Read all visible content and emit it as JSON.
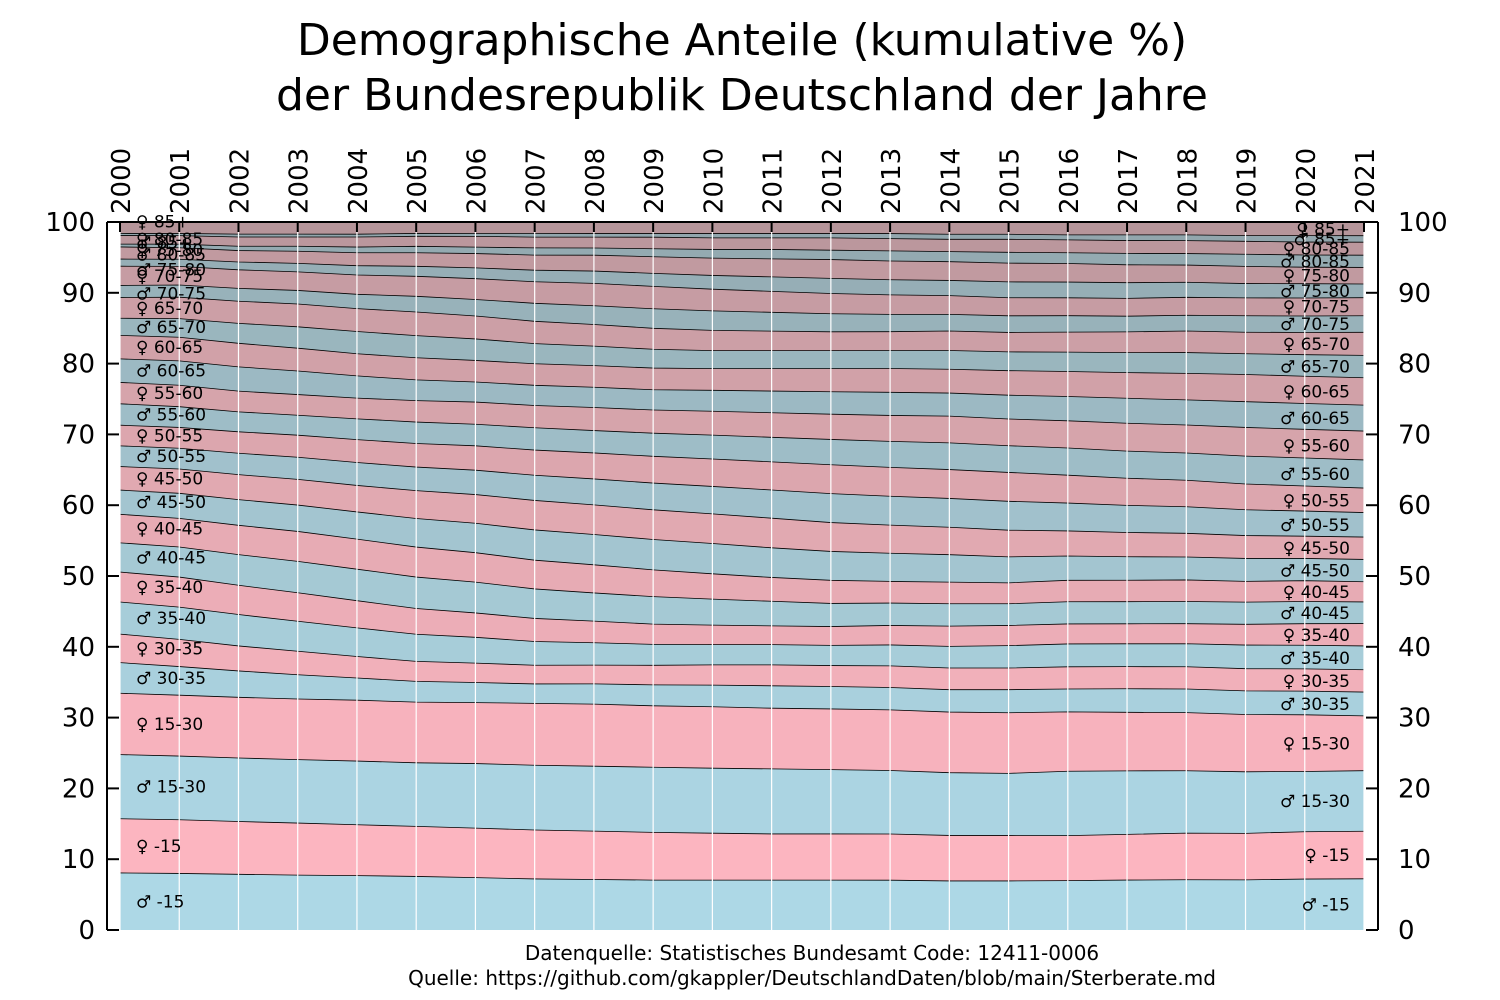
{
  "title_line1": "Demographische Anteile (kumulative %)",
  "title_line2": "der Bundesrepublik Deutschland der Jahre",
  "source_line1": "Datenquelle: Statistisches Bundesamt Code: 12411-0006",
  "source_line2": "Quelle: https://github.com/gkappler/DeutschlandDaten/blob/main/Sterberate.md",
  "colors": {
    "male": "#add8e6",
    "female": "#ffb6c1",
    "age_tint": "#7a7a7a"
  },
  "chart_data": {
    "type": "area",
    "stacked": true,
    "title": "Demographische Anteile (kumulative %) der Bundesrepublik Deutschland der Jahre",
    "x": [
      "2000",
      "2001",
      "2002",
      "2003",
      "2004",
      "2005",
      "2006",
      "2007",
      "2008",
      "2009",
      "2010",
      "2011",
      "2012",
      "2013",
      "2014",
      "2015",
      "2016",
      "2017",
      "2018",
      "2019",
      "2020",
      "2021"
    ],
    "x_axis_position": "top",
    "ylim": [
      0,
      100
    ],
    "yticks": [
      0,
      10,
      20,
      30,
      40,
      50,
      60,
      70,
      80,
      90,
      100
    ],
    "y_axis_both_sides": true,
    "grid": "vertical",
    "series": [
      {
        "name": "♂ -15",
        "sex": "male",
        "values": [
          8.0,
          7.9,
          7.8,
          7.7,
          7.6,
          7.5,
          7.3,
          7.1,
          7.0,
          6.9,
          6.9,
          6.9,
          6.9,
          6.9,
          6.8,
          6.8,
          6.9,
          7.0,
          7.0,
          7.0,
          7.1,
          7.1
        ]
      },
      {
        "name": "♀ -15",
        "sex": "female",
        "values": [
          7.6,
          7.5,
          7.4,
          7.3,
          7.1,
          7.0,
          6.9,
          6.8,
          6.7,
          6.6,
          6.5,
          6.4,
          6.4,
          6.4,
          6.3,
          6.3,
          6.3,
          6.4,
          6.5,
          6.5,
          6.6,
          6.6
        ]
      },
      {
        "name": "♂ 15-30",
        "sex": "male",
        "values": [
          9.0,
          8.9,
          8.9,
          8.9,
          8.9,
          8.9,
          9.0,
          9.0,
          9.0,
          9.0,
          9.0,
          9.0,
          8.9,
          8.8,
          8.7,
          8.6,
          9.0,
          8.9,
          8.7,
          8.6,
          8.4,
          8.4
        ]
      },
      {
        "name": "♀ 15-30",
        "sex": "female",
        "values": [
          8.6,
          8.5,
          8.5,
          8.5,
          8.5,
          8.5,
          8.5,
          8.6,
          8.6,
          8.5,
          8.5,
          8.4,
          8.4,
          8.4,
          8.4,
          8.4,
          8.3,
          8.2,
          8.1,
          8.0,
          7.9,
          7.6
        ]
      },
      {
        "name": "♂ 30-35",
        "sex": "male",
        "values": [
          4.3,
          4.0,
          3.7,
          3.4,
          3.1,
          2.9,
          2.8,
          2.7,
          2.8,
          2.9,
          3.0,
          3.1,
          3.1,
          3.1,
          3.1,
          3.2,
          3.2,
          3.3,
          3.3,
          3.3,
          3.3,
          3.3
        ]
      },
      {
        "name": "♀ 30-35",
        "sex": "female",
        "values": [
          4.0,
          3.8,
          3.5,
          3.3,
          3.0,
          2.8,
          2.7,
          2.6,
          2.6,
          2.7,
          2.8,
          2.9,
          2.9,
          3.0,
          3.0,
          3.0,
          3.1,
          3.1,
          3.1,
          3.1,
          3.1,
          3.1
        ]
      },
      {
        "name": "♂ 35-40",
        "sex": "male",
        "values": [
          4.5,
          4.5,
          4.4,
          4.2,
          4.0,
          3.8,
          3.6,
          3.3,
          3.1,
          2.9,
          2.8,
          2.8,
          2.8,
          2.9,
          3.0,
          3.1,
          3.2,
          3.2,
          3.2,
          3.3,
          3.3,
          3.3
        ]
      },
      {
        "name": "♀ 35-40",
        "sex": "female",
        "values": [
          4.2,
          4.2,
          4.1,
          4.0,
          3.8,
          3.6,
          3.4,
          3.2,
          3.0,
          2.8,
          2.7,
          2.6,
          2.6,
          2.7,
          2.8,
          2.8,
          2.8,
          2.8,
          2.8,
          2.9,
          3.0,
          3.1
        ]
      },
      {
        "name": "♂ 40-45",
        "sex": "male",
        "values": [
          4.1,
          4.2,
          4.3,
          4.4,
          4.4,
          4.4,
          4.3,
          4.1,
          3.9,
          3.8,
          3.6,
          3.4,
          3.2,
          3.1,
          3.1,
          3.0,
          3.1,
          3.1,
          3.1,
          3.1,
          3.1,
          3.0
        ]
      },
      {
        "name": "♀ 40-45",
        "sex": "female",
        "values": [
          4.0,
          4.0,
          4.1,
          4.2,
          4.2,
          4.2,
          4.1,
          4.0,
          3.9,
          3.7,
          3.5,
          3.3,
          3.2,
          3.0,
          3.0,
          2.9,
          3.0,
          3.0,
          3.0,
          2.9,
          2.9,
          2.8
        ]
      },
      {
        "name": "♂ 45-50",
        "sex": "male",
        "values": [
          3.4,
          3.5,
          3.6,
          3.7,
          3.8,
          4.0,
          4.1,
          4.2,
          4.2,
          4.2,
          4.2,
          4.1,
          4.0,
          3.9,
          3.8,
          3.6,
          3.4,
          3.3,
          3.2,
          3.2,
          3.1,
          3.1
        ]
      },
      {
        "name": "♀ 45-50",
        "sex": "female",
        "values": [
          3.3,
          3.4,
          3.5,
          3.6,
          3.7,
          3.9,
          4.0,
          4.1,
          4.1,
          4.1,
          4.1,
          4.1,
          4.0,
          3.9,
          3.8,
          3.7,
          3.5,
          3.4,
          3.3,
          3.2,
          3.1,
          3.1
        ]
      },
      {
        "name": "♂ 50-55",
        "sex": "male",
        "values": [
          2.9,
          2.9,
          3.0,
          3.1,
          3.2,
          3.3,
          3.4,
          3.5,
          3.6,
          3.7,
          3.8,
          3.9,
          4.0,
          4.0,
          4.0,
          4.0,
          3.9,
          3.8,
          3.7,
          3.6,
          3.5,
          3.4
        ]
      },
      {
        "name": "♀ 50-55",
        "sex": "female",
        "values": [
          2.9,
          2.9,
          3.0,
          3.1,
          3.2,
          3.3,
          3.4,
          3.5,
          3.6,
          3.7,
          3.8,
          3.9,
          4.0,
          4.0,
          4.0,
          4.0,
          3.9,
          3.8,
          3.7,
          3.6,
          3.5,
          3.4
        ]
      },
      {
        "name": "♂ 55-60",
        "sex": "male",
        "values": [
          3.0,
          2.9,
          2.8,
          2.8,
          2.9,
          3.0,
          3.0,
          3.1,
          3.1,
          3.2,
          3.3,
          3.4,
          3.5,
          3.6,
          3.7,
          3.7,
          3.8,
          3.8,
          3.8,
          3.9,
          3.9,
          3.9
        ]
      },
      {
        "name": "♀ 55-60",
        "sex": "female",
        "values": [
          3.0,
          3.0,
          2.9,
          2.9,
          2.9,
          3.0,
          3.1,
          3.1,
          3.2,
          3.2,
          3.3,
          3.4,
          3.5,
          3.6,
          3.7,
          3.7,
          3.8,
          3.9,
          3.9,
          4.0,
          4.0,
          4.0
        ]
      },
      {
        "name": "♂ 60-65",
        "sex": "male",
        "values": [
          3.3,
          3.4,
          3.4,
          3.3,
          3.1,
          2.9,
          2.8,
          2.8,
          2.8,
          2.8,
          2.9,
          3.0,
          3.1,
          3.2,
          3.2,
          3.3,
          3.4,
          3.5,
          3.5,
          3.6,
          3.6,
          3.6
        ]
      },
      {
        "name": "♀ 60-65",
        "sex": "female",
        "values": [
          3.3,
          3.3,
          3.3,
          3.2,
          3.1,
          3.1,
          3.0,
          3.0,
          3.0,
          3.0,
          3.0,
          3.1,
          3.2,
          3.3,
          3.3,
          3.4,
          3.5,
          3.6,
          3.7,
          3.8,
          3.8,
          3.8
        ]
      },
      {
        "name": "♂ 65-70",
        "sex": "male",
        "values": [
          2.4,
          2.6,
          2.8,
          3.0,
          3.1,
          3.1,
          3.0,
          2.8,
          2.7,
          2.6,
          2.5,
          2.5,
          2.5,
          2.5,
          2.6,
          2.6,
          2.7,
          2.8,
          2.9,
          2.9,
          3.0,
          3.1
        ]
      },
      {
        "name": "♀ 65-70",
        "sex": "female",
        "values": [
          2.9,
          3.0,
          3.1,
          3.2,
          3.2,
          3.3,
          3.2,
          3.1,
          3.0,
          2.9,
          2.8,
          2.7,
          2.6,
          2.6,
          2.7,
          2.7,
          2.8,
          2.9,
          3.0,
          3.0,
          3.1,
          3.2
        ]
      },
      {
        "name": "♂ 70-75",
        "sex": "male",
        "values": [
          1.7,
          1.7,
          1.8,
          1.9,
          2.0,
          2.2,
          2.3,
          2.5,
          2.6,
          2.7,
          2.7,
          2.6,
          2.5,
          2.4,
          2.3,
          2.3,
          2.3,
          2.2,
          2.2,
          2.3,
          2.3,
          2.3
        ]
      },
      {
        "name": "♀ 70-75",
        "sex": "female",
        "values": [
          2.7,
          2.6,
          2.6,
          2.6,
          2.7,
          2.8,
          2.9,
          3.0,
          3.1,
          3.1,
          3.0,
          2.9,
          2.8,
          2.7,
          2.6,
          2.5,
          2.5,
          2.5,
          2.5,
          2.5,
          2.5,
          2.5
        ]
      },
      {
        "name": "♂ 75-80",
        "sex": "male",
        "values": [
          1.0,
          1.0,
          1.1,
          1.2,
          1.3,
          1.4,
          1.5,
          1.6,
          1.7,
          1.8,
          1.9,
          2.0,
          2.1,
          2.1,
          2.1,
          2.2,
          2.2,
          2.2,
          2.1,
          2.0,
          2.0,
          1.9
        ]
      },
      {
        "name": "♀ 75-80",
        "sex": "female",
        "values": [
          1.7,
          1.6,
          1.6,
          1.7,
          1.8,
          1.9,
          2.0,
          2.1,
          2.2,
          2.3,
          2.4,
          2.5,
          2.6,
          2.6,
          2.6,
          2.6,
          2.6,
          2.5,
          2.4,
          2.4,
          2.3,
          2.3
        ]
      },
      {
        "name": "♂ 80-85",
        "sex": "male",
        "values": [
          0.4,
          0.5,
          0.6,
          0.7,
          0.8,
          0.9,
          0.9,
          1.0,
          1.0,
          1.1,
          1.2,
          1.3,
          1.3,
          1.4,
          1.4,
          1.5,
          1.5,
          1.6,
          1.6,
          1.7,
          1.7,
          1.7
        ]
      },
      {
        "name": "♀ 80-85",
        "sex": "female",
        "values": [
          1.2,
          1.2,
          1.3,
          1.3,
          1.4,
          1.4,
          1.5,
          1.5,
          1.5,
          1.6,
          1.6,
          1.6,
          1.7,
          1.7,
          1.7,
          1.8,
          1.8,
          1.8,
          1.8,
          1.8,
          1.8,
          1.8
        ]
      },
      {
        "name": "♂ 85+",
        "sex": "male",
        "values": [
          0.3,
          0.3,
          0.4,
          0.4,
          0.4,
          0.4,
          0.4,
          0.5,
          0.5,
          0.5,
          0.6,
          0.6,
          0.6,
          0.7,
          0.7,
          0.7,
          0.7,
          0.8,
          0.8,
          0.8,
          0.9,
          0.9
        ]
      },
      {
        "name": "♀ 85+",
        "sex": "female",
        "values": [
          1.6,
          1.6,
          1.7,
          1.7,
          1.7,
          1.6,
          1.6,
          1.6,
          1.6,
          1.6,
          1.6,
          1.6,
          1.6,
          1.6,
          1.7,
          1.7,
          1.8,
          1.8,
          1.8,
          1.9,
          1.9,
          1.9
        ]
      }
    ]
  }
}
